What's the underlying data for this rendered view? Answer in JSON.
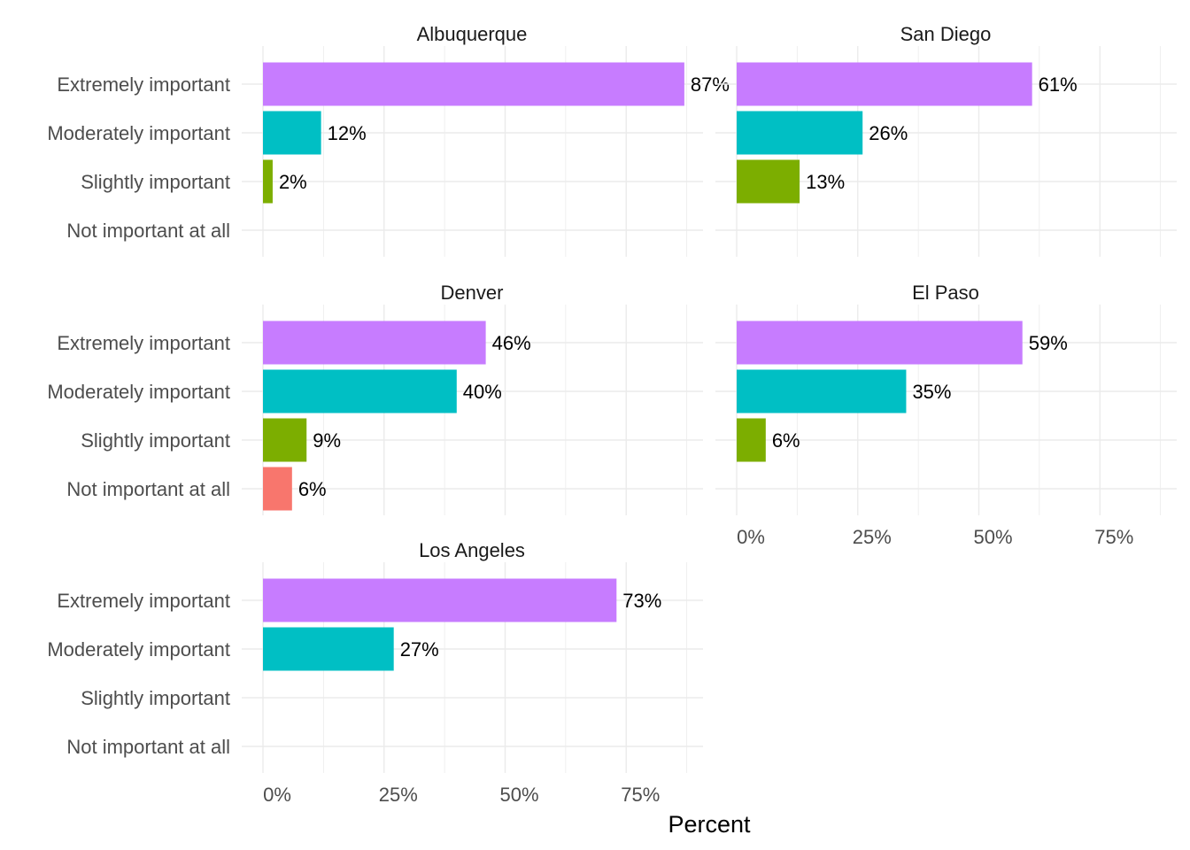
{
  "chart_data": {
    "type": "bar",
    "orientation": "horizontal",
    "faceted": true,
    "xlabel": "Percent",
    "xlim": [
      0,
      90
    ],
    "xticks": [
      0,
      25,
      50,
      75
    ],
    "xtick_labels": [
      "0%",
      "25%",
      "50%",
      "75%"
    ],
    "grid": true,
    "categories": [
      "Extremely important",
      "Moderately important",
      "Slightly important",
      "Not important at all"
    ],
    "colors": {
      "Extremely important": "#C77CFF",
      "Moderately important": "#00BFC4",
      "Slightly important": "#7CAE00",
      "Not important at all": "#F8766D"
    },
    "facets": [
      {
        "name": "Albuquerque",
        "values": [
          87,
          12,
          2,
          null
        ],
        "labels": [
          "87%",
          "12%",
          "2%",
          ""
        ]
      },
      {
        "name": "San Diego",
        "values": [
          61,
          26,
          13,
          null
        ],
        "labels": [
          "61%",
          "26%",
          "13%",
          ""
        ]
      },
      {
        "name": "Denver",
        "values": [
          46,
          40,
          9,
          6
        ],
        "labels": [
          "46%",
          "40%",
          "9%",
          "6%"
        ]
      },
      {
        "name": "El Paso",
        "values": [
          59,
          35,
          6,
          null
        ],
        "labels": [
          "59%",
          "35%",
          "6%",
          ""
        ]
      },
      {
        "name": "Los Angeles",
        "values": [
          73,
          27,
          null,
          null
        ],
        "labels": [
          "73%",
          "27%",
          "",
          ""
        ]
      }
    ]
  }
}
